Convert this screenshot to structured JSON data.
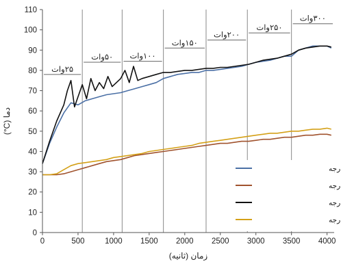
{
  "chart_data": {
    "type": "line",
    "xlabel": "زمان  (ثانیه)",
    "ylabel": "دما (C°)",
    "xlim": [
      0,
      4100
    ],
    "ylim": [
      0,
      110
    ],
    "x_ticks": [
      0,
      500,
      1000,
      1500,
      2000,
      2500,
      3000,
      3500,
      4000
    ],
    "y_ticks": [
      0,
      10,
      20,
      30,
      40,
      50,
      60,
      70,
      80,
      90,
      100,
      110
    ],
    "grid": "off",
    "legend_position": "bottom-right",
    "power_zones": [
      {
        "label": "۲۵وات",
        "start": 0,
        "end": 560,
        "label_y": 78
      },
      {
        "label": "۵۰وات",
        "start": 560,
        "end": 1120,
        "label_y": 84
      },
      {
        "label": "۱۰۰وات",
        "start": 1120,
        "end": 1700,
        "label_y": 84.5
      },
      {
        "label": "۱۵۰وات",
        "start": 1700,
        "end": 2300,
        "label_y": 91
      },
      {
        "label": "۲۰۰وات",
        "start": 2300,
        "end": 2880,
        "label_y": 95
      },
      {
        "label": "۲۵۰وات",
        "start": 2880,
        "end": 3500,
        "label_y": 98.5
      },
      {
        "label": "۳۰۰وات",
        "start": 3500,
        "end": 4100,
        "label_y": 103
      }
    ],
    "series": [
      {
        "name": "تبخیرکننده ۹۰ درجه",
        "color": "#4a6fa5",
        "x": [
          0,
          100,
          200,
          300,
          400,
          500,
          600,
          700,
          800,
          900,
          1000,
          1100,
          1200,
          1300,
          1400,
          1500,
          1600,
          1700,
          1800,
          1900,
          2000,
          2100,
          2200,
          2300,
          2400,
          2500,
          2600,
          2700,
          2800,
          2900,
          3000,
          3100,
          3200,
          3300,
          3400,
          3500,
          3600,
          3700,
          3800,
          3900,
          4000,
          4060
        ],
        "y": [
          34,
          44,
          52,
          59,
          64,
          63,
          65,
          66,
          67,
          68,
          68.5,
          69,
          70,
          71,
          72,
          73,
          74,
          76,
          77,
          78,
          78.5,
          79,
          79,
          80,
          80,
          80.5,
          81,
          81.5,
          82,
          83,
          84,
          84.5,
          85,
          86,
          87,
          87,
          90,
          91,
          92,
          92,
          92,
          91
        ]
      },
      {
        "name": "چگالنده ۹۰ درجه",
        "color": "#a0522d",
        "x": [
          0,
          100,
          200,
          300,
          400,
          500,
          600,
          700,
          800,
          900,
          1000,
          1100,
          1200,
          1300,
          1400,
          1500,
          1600,
          1700,
          1800,
          1900,
          2000,
          2100,
          2200,
          2300,
          2400,
          2500,
          2600,
          2700,
          2800,
          2900,
          3000,
          3100,
          3200,
          3300,
          3400,
          3500,
          3600,
          3700,
          3800,
          3900,
          4000,
          4060
        ],
        "y": [
          28.5,
          28.5,
          28.5,
          29,
          30,
          31,
          32,
          33,
          34,
          35,
          35.5,
          36,
          37,
          38,
          38.5,
          39,
          39.5,
          40,
          40.5,
          41,
          41.5,
          42,
          42.5,
          43,
          43.5,
          44,
          44,
          44.5,
          45,
          45,
          45.5,
          46,
          46,
          46.5,
          47,
          47,
          47.5,
          48,
          48,
          48.5,
          48.5,
          48
        ]
      },
      {
        "name": "تبخیرکننده ۱۵ درجه",
        "color": "#111111",
        "x": [
          0,
          100,
          200,
          300,
          350,
          400,
          450,
          500,
          560,
          620,
          680,
          740,
          800,
          860,
          920,
          980,
          1040,
          1100,
          1160,
          1220,
          1280,
          1340,
          1400,
          1500,
          1600,
          1700,
          1800,
          1900,
          2000,
          2100,
          2200,
          2300,
          2400,
          2500,
          2600,
          2700,
          2800,
          2900,
          3000,
          3100,
          3200,
          3300,
          3400,
          3500,
          3600,
          3700,
          3800,
          3900,
          4000,
          4060
        ],
        "y": [
          34,
          45,
          55,
          63,
          70,
          75,
          62,
          67,
          73,
          66,
          76,
          70,
          74,
          71,
          77,
          72,
          74,
          76,
          80,
          74,
          82,
          75,
          76,
          77,
          78,
          79,
          79,
          79.5,
          80,
          80,
          80.5,
          81,
          81,
          81.5,
          81.5,
          82,
          82.5,
          83,
          84,
          85,
          85.5,
          86,
          87,
          88,
          90,
          91,
          91.5,
          92,
          92,
          91.5
        ]
      },
      {
        "name": "چگالنده ۱۵ درجه",
        "color": "#d4a017",
        "x": [
          0,
          100,
          200,
          300,
          400,
          500,
          600,
          700,
          800,
          900,
          1000,
          1100,
          1200,
          1300,
          1400,
          1500,
          1600,
          1700,
          1800,
          1900,
          2000,
          2100,
          2200,
          2300,
          2400,
          2500,
          2600,
          2700,
          2800,
          2900,
          3000,
          3100,
          3200,
          3300,
          3400,
          3500,
          3600,
          3700,
          3800,
          3900,
          4000,
          4060
        ],
        "y": [
          28.5,
          28.5,
          29,
          31,
          33,
          34,
          34.5,
          35,
          35.5,
          36,
          37,
          37.5,
          38,
          38.5,
          39,
          40,
          40.5,
          41,
          41.5,
          42,
          42.5,
          43,
          44,
          44.5,
          45,
          45.5,
          46,
          46.5,
          47,
          47.5,
          48,
          48.5,
          49,
          49,
          49.5,
          50,
          50,
          50.5,
          51,
          51,
          51.5,
          51
        ]
      }
    ]
  }
}
